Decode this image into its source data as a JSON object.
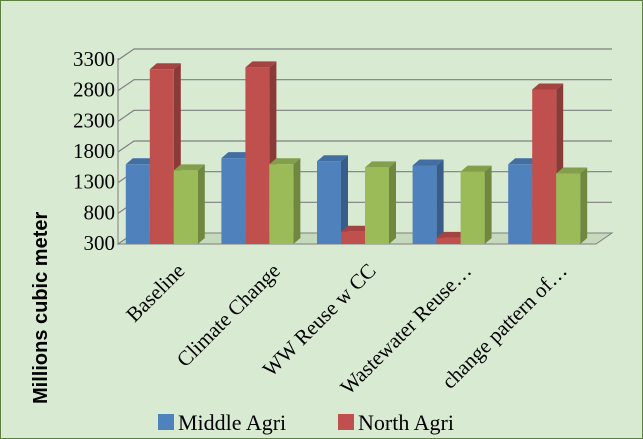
{
  "chart_data": {
    "type": "bar",
    "title": "",
    "xlabel": "",
    "ylabel": "Millions cubic meter",
    "ylim": [
      300,
      3300
    ],
    "yticks": [
      "300",
      "800",
      "1300",
      "1800",
      "2300",
      "2800",
      "3300"
    ],
    "grid": true,
    "legend_position": "bottom",
    "categories": [
      "Baseline",
      "Climate Change",
      "WW Reuse w CC",
      "Wastewater Reuse…",
      "change pattern of…"
    ],
    "series": [
      {
        "name": "Middle Agri",
        "color": "#4f81bd",
        "values": [
          1600,
          1700,
          1650,
          1580,
          1600
        ]
      },
      {
        "name": "North Agri",
        "color": "#c0504d",
        "values": [
          3150,
          3180,
          500,
          400,
          2820
        ]
      },
      {
        "name": "",
        "color": "#9bbb59",
        "values": [
          1500,
          1600,
          1550,
          1480,
          1450
        ]
      }
    ],
    "legend": [
      {
        "label": "Middle Agri",
        "color": "#4f81bd"
      },
      {
        "label": "North Agri",
        "color": "#c0504d"
      }
    ]
  }
}
